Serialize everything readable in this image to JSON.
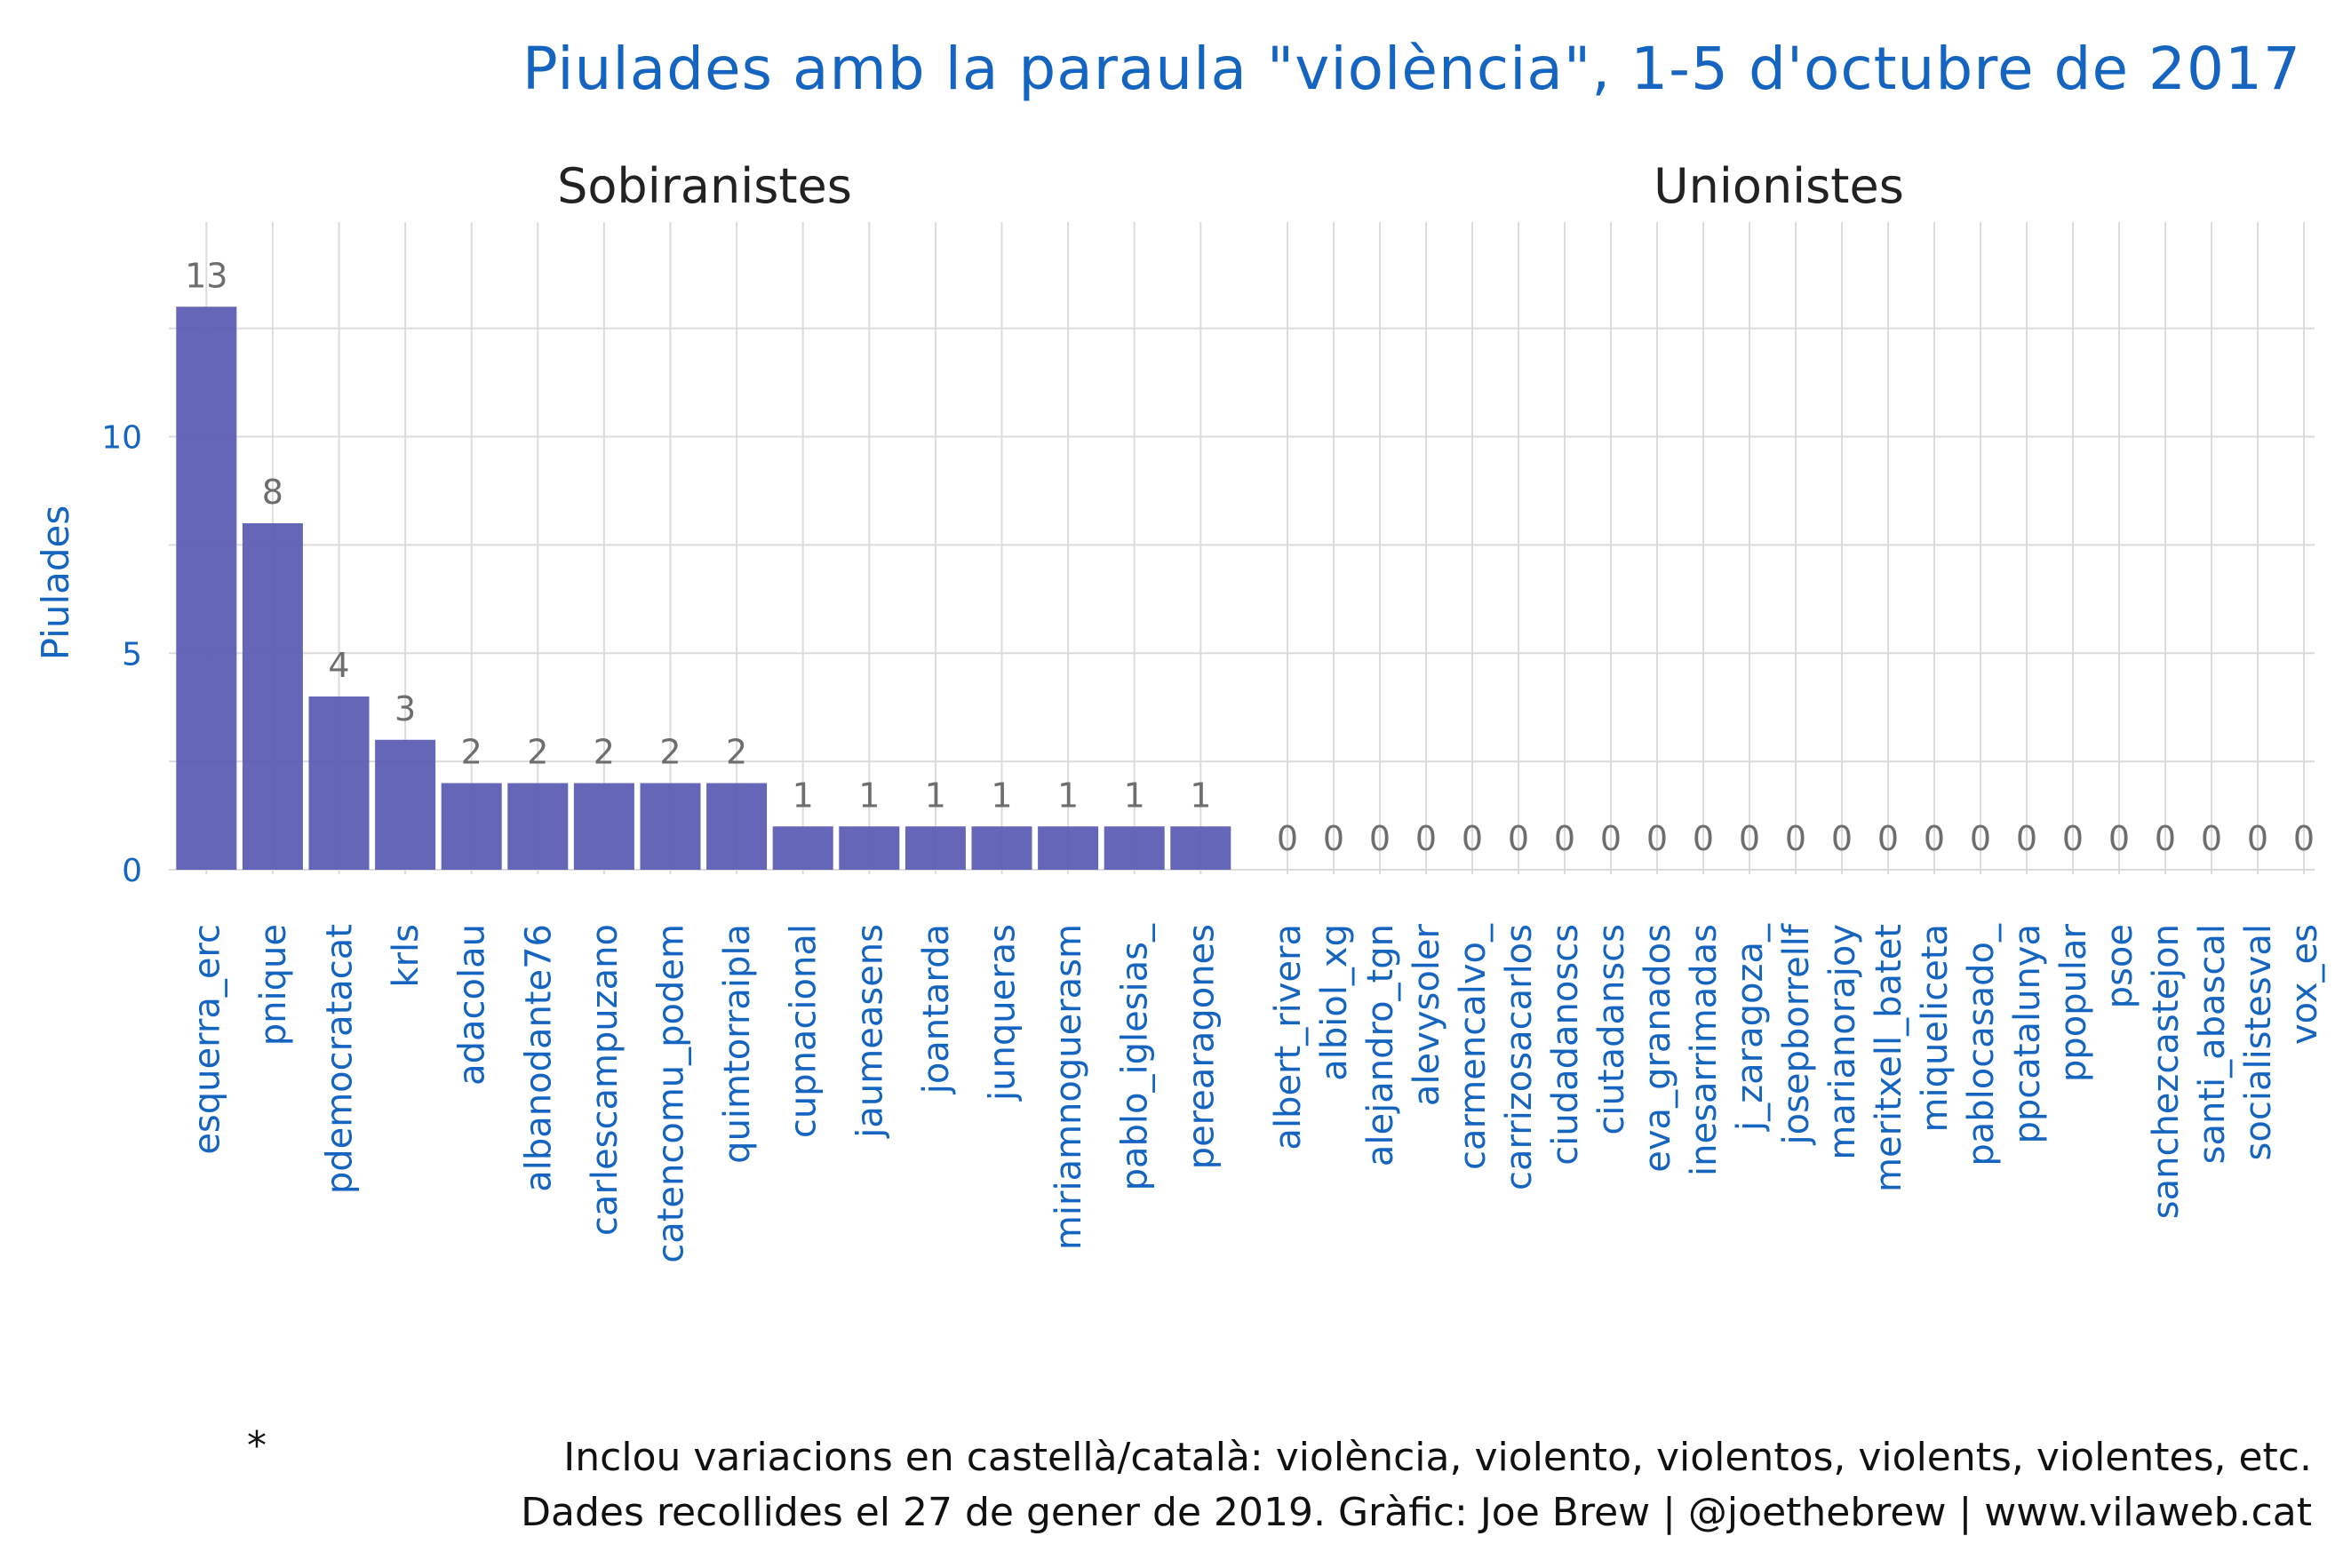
{
  "chart_data": {
    "type": "bar",
    "title": "Piulades amb la paraula \"violència\", 1-5 d'octubre de 2017",
    "ylabel": "Piulades",
    "ylim": [
      0,
      13.5
    ],
    "yticks": [
      0,
      5,
      10
    ],
    "grid": true,
    "bar_color": "#5a5ab4",
    "title_color": "#1565c0",
    "panels": [
      {
        "name": "Sobiranistes",
        "categories": [
          "esquerra_erc",
          "pnique",
          "pdemocratacat",
          "krls",
          "adacolau",
          "albanodante76",
          "carlescampuzano",
          "catencomu_podem",
          "quimtorraipla",
          "cupnacional",
          "jaumeasens",
          "joantarda",
          "junqueras",
          "miriamnoguerasm",
          "pablo_iglesias_",
          "perearagones"
        ],
        "values": [
          13,
          8,
          4,
          3,
          2,
          2,
          2,
          2,
          2,
          1,
          1,
          1,
          1,
          1,
          1,
          1
        ]
      },
      {
        "name": "Unionistes",
        "categories": [
          "albert_rivera",
          "albiol_xg",
          "alejandro_tgn",
          "alevysoler",
          "carmencalvo_",
          "carrizosacarlos",
          "ciudadanoscs",
          "ciutadanscs",
          "eva_granados",
          "inesarrimadas",
          "j_zaragoza_",
          "josepborrellf",
          "marianorajoy",
          "meritxell_batet",
          "miqueliceta",
          "pablocasado_",
          "ppcatalunya",
          "ppopular",
          "psoe",
          "sanchezcastejon",
          "santi_abascal",
          "socialistesval",
          "vox_es"
        ],
        "values": [
          0,
          0,
          0,
          0,
          0,
          0,
          0,
          0,
          0,
          0,
          0,
          0,
          0,
          0,
          0,
          0,
          0,
          0,
          0,
          0,
          0,
          0,
          0
        ]
      }
    ]
  },
  "caption": {
    "star": "*",
    "line1": "Inclou variacions en castellà/català: violència, violento, violentos, violents, violentes, etc.",
    "line2": "Dades recollides el 27 de gener de 2019. Gràfic: Joe Brew | @joethebrew | www.vilaweb.cat"
  }
}
